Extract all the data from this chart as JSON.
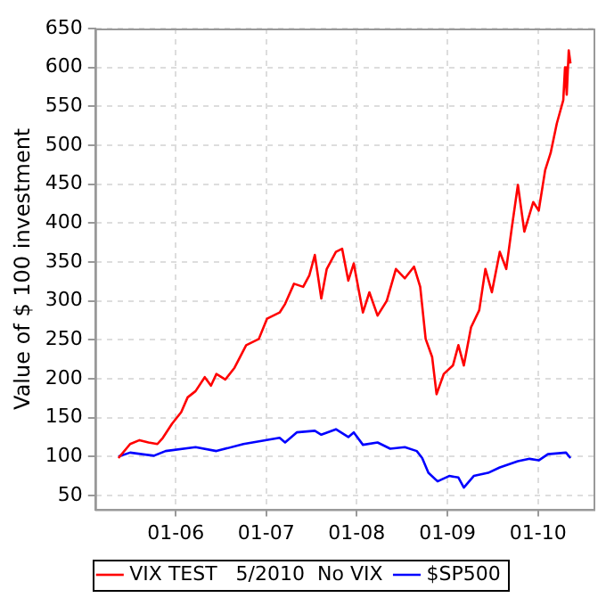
{
  "chart_data": {
    "type": "line",
    "ylabel": "Value of $ 100 investment",
    "xlim": [
      "2005-02-10",
      "2010-08-13"
    ],
    "ylim": [
      32,
      650
    ],
    "xticks": [
      {
        "value": "2006-01",
        "label": "01-06"
      },
      {
        "value": "2007-01",
        "label": "01-07"
      },
      {
        "value": "2008-01",
        "label": "01-08"
      },
      {
        "value": "2009-01",
        "label": "01-09"
      },
      {
        "value": "2010-01",
        "label": "01-10"
      }
    ],
    "yticks": [
      50,
      100,
      150,
      200,
      250,
      300,
      350,
      400,
      450,
      500,
      550,
      600,
      650
    ],
    "grid": true,
    "legend": "bottom",
    "marker": "none",
    "line_style": "solid",
    "series": [
      {
        "name": "VIX TEST   5/2010  No VIX",
        "color": "#ff0000",
        "x": [
          "2005-05-15",
          "2005-07-01",
          "2005-08-08",
          "2005-09-13",
          "2005-10-19",
          "2005-11-10",
          "2005-12-17",
          "2006-01-23",
          "2006-02-18",
          "2006-03-22",
          "2006-04-28",
          "2006-05-23",
          "2006-06-14",
          "2006-07-20",
          "2006-08-26",
          "2006-10-12",
          "2006-12-02",
          "2007-01-04",
          "2007-02-24",
          "2007-03-18",
          "2007-04-23",
          "2007-05-30",
          "2007-06-24",
          "2007-07-16",
          "2007-08-11",
          "2007-09-02",
          "2007-10-09",
          "2007-11-03",
          "2007-11-28",
          "2007-12-20",
          "2008-01-26",
          "2008-02-21",
          "2008-03-25",
          "2008-05-01",
          "2008-06-07",
          "2008-07-13",
          "2008-08-19",
          "2008-09-13",
          "2008-10-05",
          "2008-10-31",
          "2008-11-18",
          "2008-12-17",
          "2009-01-23",
          "2009-02-14",
          "2009-03-08",
          "2009-04-06",
          "2009-05-09",
          "2009-06-03",
          "2009-06-29",
          "2009-07-31",
          "2009-08-26",
          "2009-09-17",
          "2009-10-12",
          "2009-11-07",
          "2009-12-13",
          "2010-01-04",
          "2010-01-30",
          "2010-02-21",
          "2010-03-18",
          "2010-04-13",
          "2010-04-20",
          "2010-04-27",
          "2010-05-05",
          "2010-05-12"
        ],
        "values": [
          98,
          116,
          121,
          118,
          116,
          124,
          142,
          157,
          176,
          184,
          202,
          191,
          206,
          199,
          214,
          243,
          251,
          277,
          285,
          296,
          322,
          318,
          333,
          359,
          303,
          341,
          363,
          367,
          326,
          348,
          285,
          311,
          281,
          300,
          341,
          329,
          344,
          318,
          251,
          228,
          180,
          206,
          217,
          243,
          217,
          266,
          288,
          341,
          311,
          363,
          341,
          393,
          449,
          389,
          427,
          416,
          468,
          490,
          528,
          558,
          600,
          565,
          622,
          605
        ]
      },
      {
        "name": "$SP500",
        "color": "#0000ff",
        "x": [
          "2005-05-15",
          "2005-07-01",
          "2005-10-05",
          "2005-11-21",
          "2006-03-22",
          "2006-06-14",
          "2006-10-01",
          "2007-02-24",
          "2007-03-18",
          "2007-05-04",
          "2007-07-16",
          "2007-08-11",
          "2007-10-09",
          "2007-11-28",
          "2007-12-20",
          "2008-01-26",
          "2008-03-25",
          "2008-05-15",
          "2008-07-13",
          "2008-08-30",
          "2008-09-21",
          "2008-10-16",
          "2008-11-22",
          "2009-01-08",
          "2009-02-14",
          "2009-03-08",
          "2009-04-17",
          "2009-06-14",
          "2009-07-31",
          "2009-10-12",
          "2009-11-28",
          "2010-01-04",
          "2010-02-10",
          "2010-04-24",
          "2010-05-12"
        ],
        "values": [
          100,
          105,
          101,
          107,
          112,
          107,
          116,
          124,
          118,
          131,
          133,
          128,
          135,
          125,
          131,
          115,
          118,
          110,
          112,
          107,
          98,
          79,
          68,
          75,
          73,
          60,
          75,
          79,
          86,
          94,
          97,
          95,
          103,
          105,
          98
        ]
      }
    ]
  }
}
